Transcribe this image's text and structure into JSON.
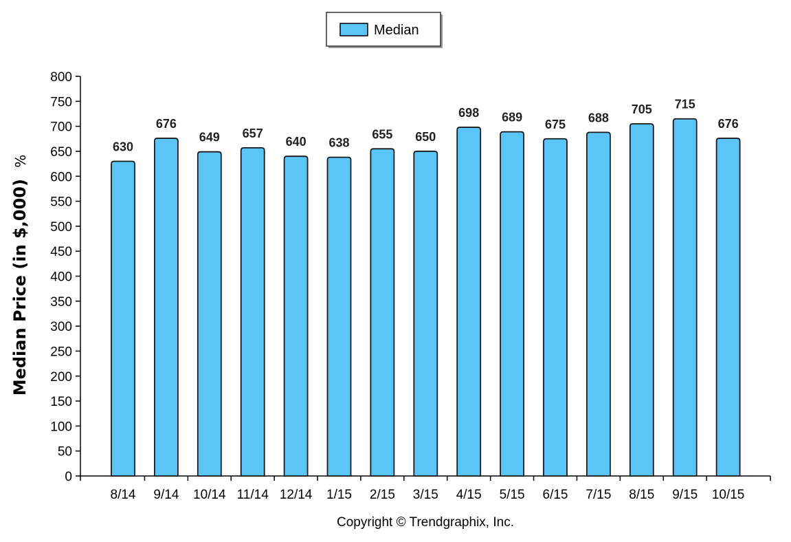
{
  "chart_data": {
    "type": "bar",
    "categories": [
      "8/14",
      "9/14",
      "10/14",
      "11/14",
      "12/14",
      "1/15",
      "2/15",
      "3/15",
      "4/15",
      "5/15",
      "6/15",
      "7/15",
      "8/15",
      "9/15",
      "10/15"
    ],
    "series": [
      {
        "name": "Median",
        "values": [
          630,
          676,
          649,
          657,
          640,
          638,
          655,
          650,
          698,
          689,
          675,
          688,
          705,
          715,
          676
        ],
        "color": "#5bc5f8"
      }
    ],
    "data_labels": [
      "630",
      "676",
      "649",
      "657",
      "640",
      "638",
      "655",
      "650",
      "698",
      "689",
      "675",
      "688",
      "705",
      "715",
      "676"
    ],
    "ylabel": "Median Price (in $,000)",
    "ylabel_suffix": "%",
    "ylim": [
      0,
      800
    ],
    "yticks": [
      0,
      50,
      100,
      150,
      200,
      250,
      300,
      350,
      400,
      450,
      500,
      550,
      600,
      650,
      700,
      750,
      800
    ],
    "ytick_labels": [
      "0",
      "50",
      "100",
      "150",
      "200",
      "250",
      "300",
      "350",
      "400",
      "450",
      "500",
      "550",
      "600",
      "650",
      "700",
      "750",
      "800"
    ],
    "grid": false,
    "legend": {
      "position": "top-center",
      "entries": [
        "Median"
      ]
    },
    "copyright": "Copyright © Trendgraphix, Inc."
  }
}
